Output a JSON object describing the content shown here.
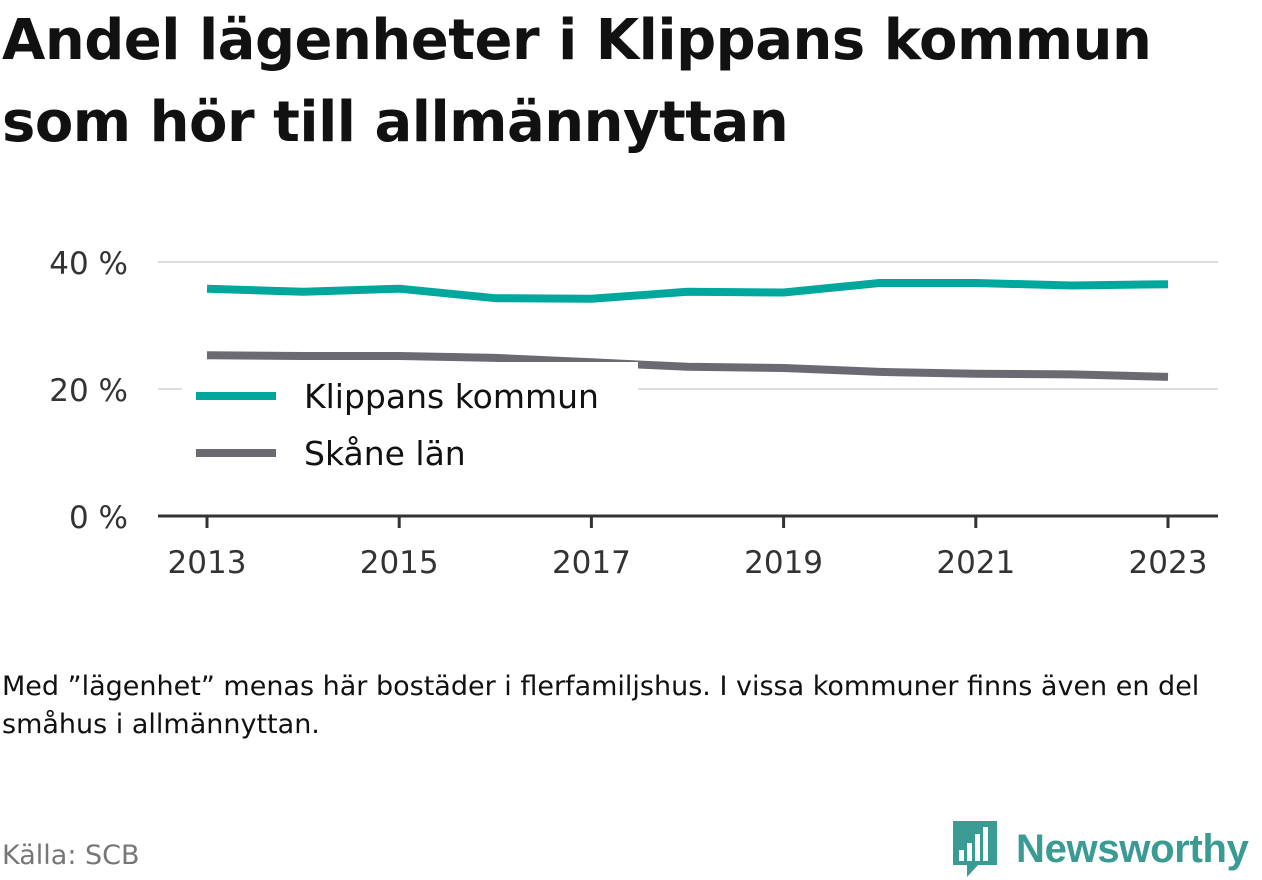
{
  "title": "Andel lägenheter i Klippans kommun som hör till allmännyttan",
  "note": "Med ”lägenhet” menas här bostäder i flerfamiljshus. I vissa kommuner finns även en del småhus i allmännyttan.",
  "source": "Källa: SCB",
  "brand": "Newsworthy",
  "colors": {
    "klippan": "#00a79d",
    "skane": "#6b6a72",
    "grid": "#dddddd",
    "axis": "#333333",
    "brand": "#3a9b94"
  },
  "chart_data": {
    "type": "line",
    "x": [
      2013,
      2014,
      2015,
      2016,
      2017,
      2018,
      2019,
      2020,
      2021,
      2022,
      2023
    ],
    "xticks": [
      "2013",
      "2015",
      "2017",
      "2019",
      "2021",
      "2023"
    ],
    "yticks": [
      "0 %",
      "20 %",
      "40 %"
    ],
    "ylim": [
      0,
      40
    ],
    "grid": true,
    "legend_position": "left, inside plot",
    "series": [
      {
        "name": "Klippans kommun",
        "color": "#00a79d",
        "values": [
          35.8,
          35.3,
          35.8,
          34.3,
          34.2,
          35.3,
          35.2,
          36.7,
          36.7,
          36.3,
          36.5
        ]
      },
      {
        "name": "Skåne län",
        "color": "#6b6a72",
        "values": [
          25.3,
          25.2,
          25.2,
          24.9,
          24.2,
          23.5,
          23.3,
          22.7,
          22.4,
          22.3,
          21.9
        ]
      }
    ]
  }
}
